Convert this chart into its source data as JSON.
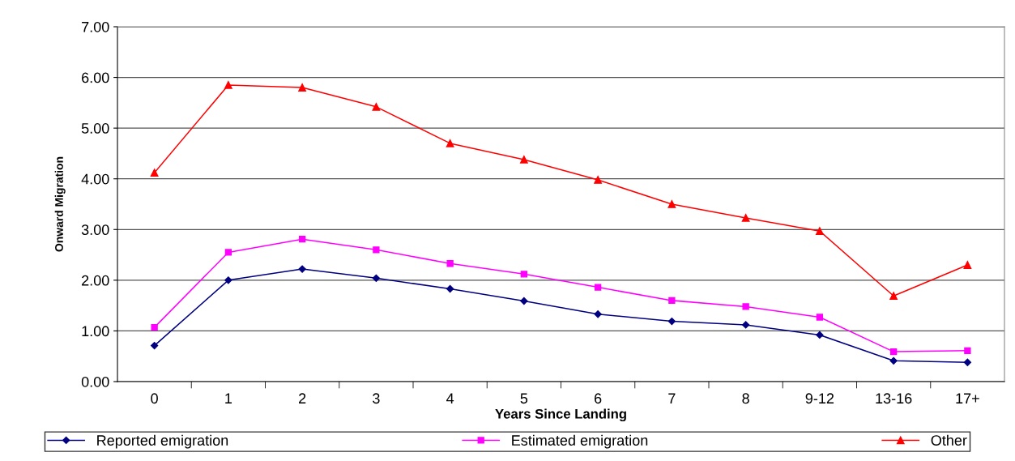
{
  "chart_data": {
    "type": "line",
    "xlabel": "Years Since Landing",
    "ylabel": "Onward Migration",
    "categories": [
      "0",
      "1",
      "2",
      "3",
      "4",
      "5",
      "6",
      "7",
      "8",
      "9-12",
      "13-16",
      "17+"
    ],
    "series": [
      {
        "name": "Reported emigration",
        "color": "#000080",
        "marker": "diamond",
        "values": [
          0.71,
          2.0,
          2.22,
          2.04,
          1.83,
          1.59,
          1.33,
          1.19,
          1.12,
          0.92,
          0.41,
          0.38
        ]
      },
      {
        "name": "Estimated emigration",
        "color": "#ff00ff",
        "marker": "square",
        "values": [
          1.07,
          2.55,
          2.81,
          2.6,
          2.33,
          2.12,
          1.86,
          1.6,
          1.48,
          1.27,
          0.59,
          0.61
        ]
      },
      {
        "name": "Other",
        "color": "#ff0000",
        "marker": "triangle",
        "values": [
          4.12,
          5.85,
          5.8,
          5.42,
          4.7,
          4.38,
          3.98,
          3.5,
          3.23,
          2.97,
          1.69,
          2.3
        ]
      }
    ],
    "ylim": [
      0,
      7
    ],
    "yticks": [
      {
        "value": 0,
        "label": "0.00"
      },
      {
        "value": 1,
        "label": "1.00"
      },
      {
        "value": 2,
        "label": "2.00"
      },
      {
        "value": 3,
        "label": "3.00"
      },
      {
        "value": 4,
        "label": "4.00"
      },
      {
        "value": 5,
        "label": "5.00"
      },
      {
        "value": 6,
        "label": "6.00"
      },
      {
        "value": 7,
        "label": "7.00"
      }
    ],
    "grid": "y",
    "legend": "bottom",
    "line_style": "solid"
  }
}
